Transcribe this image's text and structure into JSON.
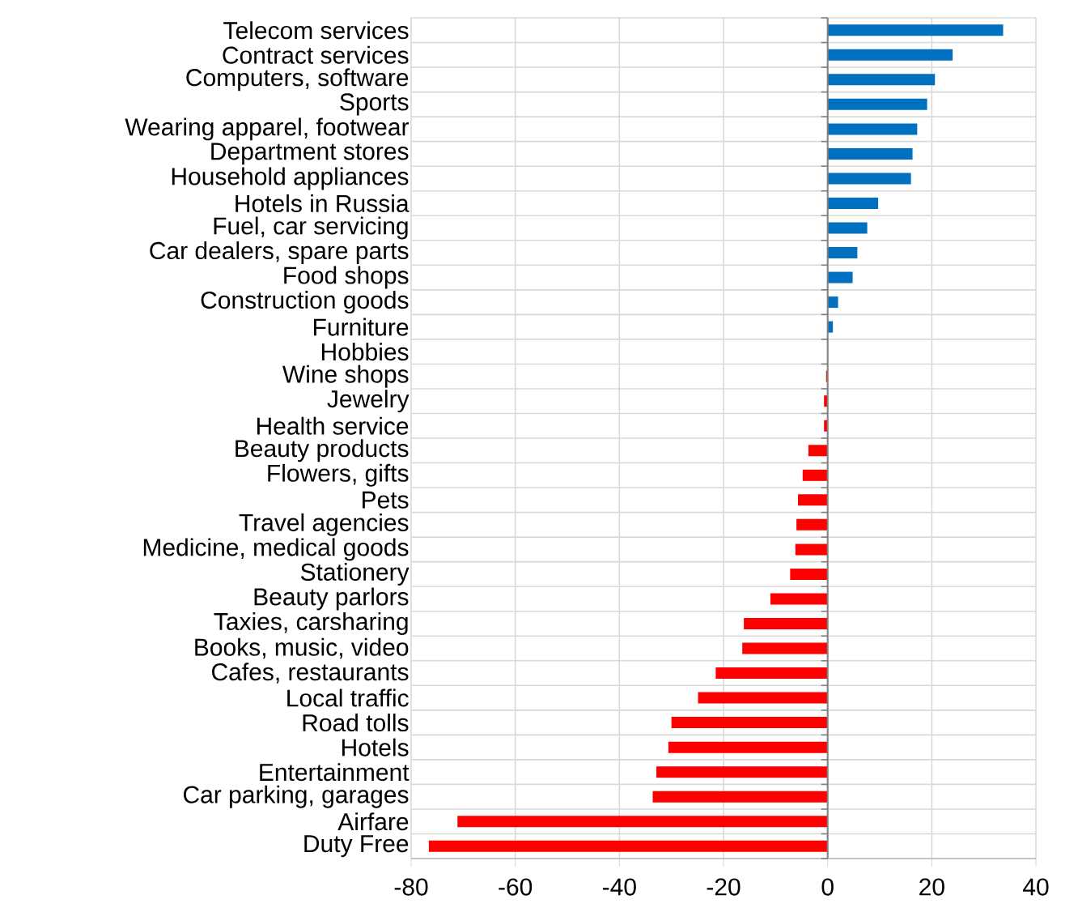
{
  "chart_data": {
    "type": "bar",
    "orientation": "horizontal",
    "categories": [
      "Telecom services",
      "Contract services",
      "Computers, software",
      "Sports",
      "Wearing apparel, footwear",
      "Department stores",
      "Household appliances",
      "Hotels in Russia",
      "Fuel, car servicing",
      "Car dealers, spare parts",
      "Food shops",
      "Construction goods",
      "Furniture",
      "Hobbies",
      "Wine shops",
      "Jewelry",
      "Health service",
      "Beauty products",
      "Flowers, gifts",
      "Pets",
      "Travel agencies",
      "Medicine, medical goods",
      "Stationery",
      "Beauty parlors",
      "Taxies, carsharing",
      "Books, music, video",
      "Cafes, restaurants",
      "Local traffic",
      "Road tolls",
      "Hotels",
      "Entertainment",
      "Car parking, garages",
      "Airfare",
      "Duty Free"
    ],
    "values": [
      33.7,
      24.0,
      20.6,
      19.1,
      17.2,
      16.3,
      16.0,
      9.7,
      7.6,
      5.7,
      4.8,
      2.0,
      1.0,
      0,
      -0.3,
      -0.7,
      -0.7,
      -3.7,
      -4.8,
      -5.7,
      -6.0,
      -6.2,
      -7.2,
      -11.0,
      -16.1,
      -16.4,
      -21.5,
      -24.9,
      -30.0,
      -30.6,
      -32.9,
      -33.6,
      -71.1,
      -76.6
    ],
    "colors": [
      "#0070c0",
      "#0070c0",
      "#0070c0",
      "#0070c0",
      "#0070c0",
      "#0070c0",
      "#0070c0",
      "#0070c0",
      "#0070c0",
      "#0070c0",
      "#0070c0",
      "#0070c0",
      "#0070c0",
      "#0070c0",
      "#ff0000",
      "#ff0000",
      "#ff0000",
      "#ff0000",
      "#ff0000",
      "#ff0000",
      "#ff0000",
      "#ff0000",
      "#ff0000",
      "#ff0000",
      "#ff0000",
      "#ff0000",
      "#ff0000",
      "#ff0000",
      "#ff0000",
      "#ff0000",
      "#ff0000",
      "#ff0000",
      "#ff0000",
      "#ff0000"
    ],
    "xlim": [
      -80,
      40
    ],
    "xticks": [
      -80,
      -60,
      -40,
      -20,
      0,
      20,
      40
    ],
    "grid": true
  }
}
